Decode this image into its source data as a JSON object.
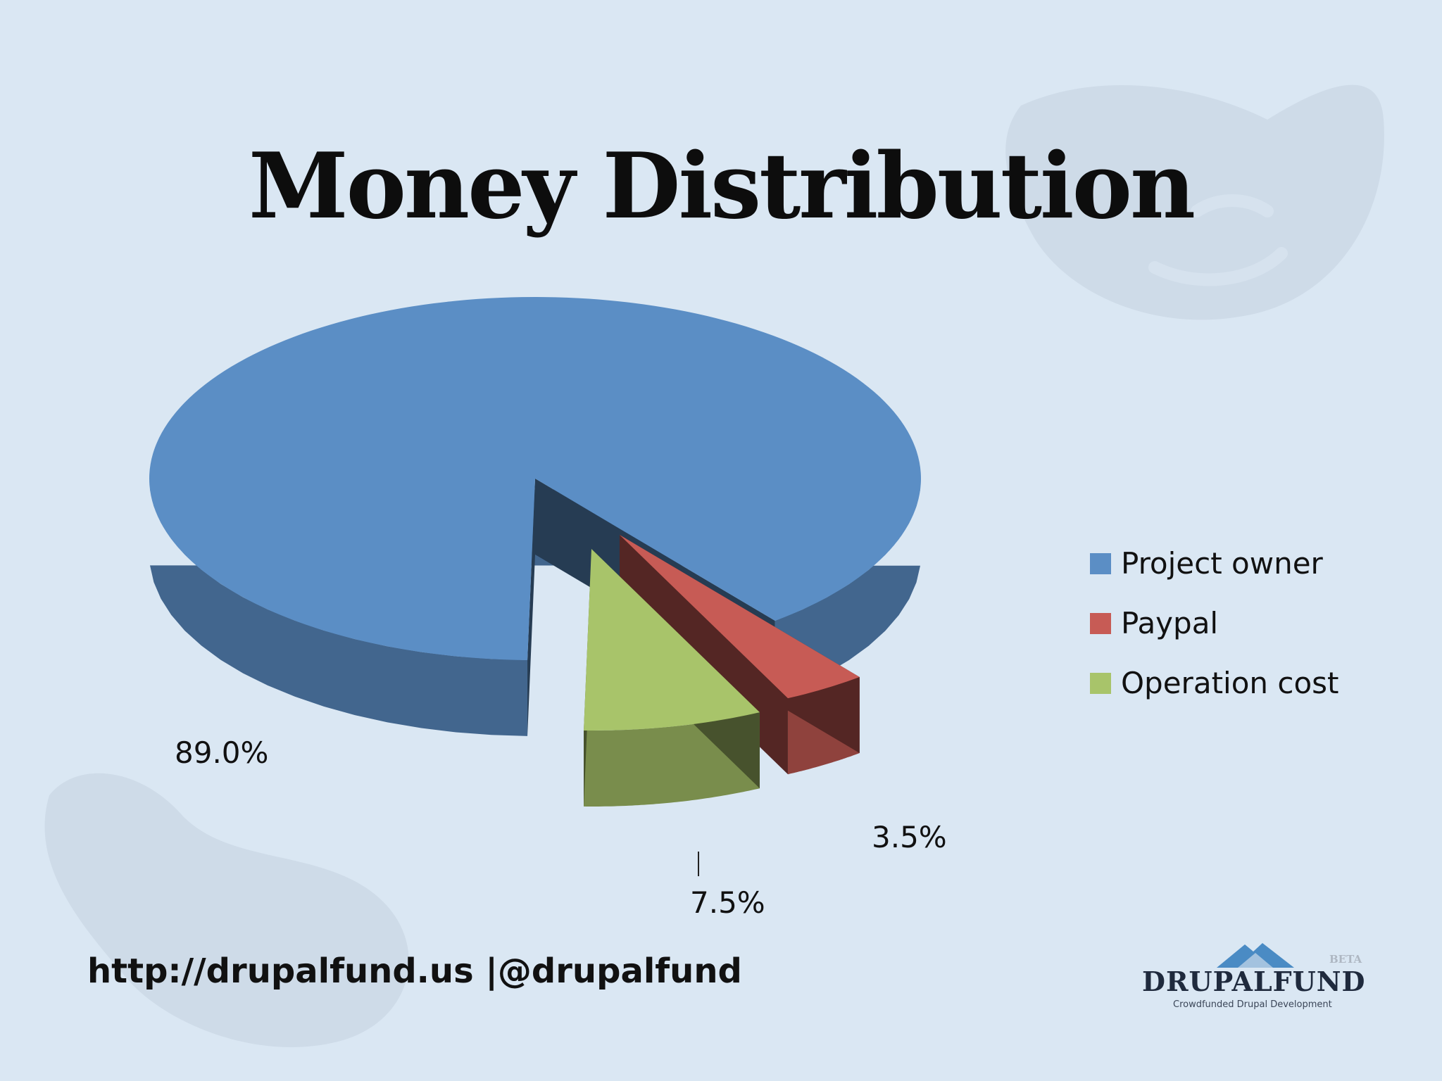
{
  "chart_data": {
    "type": "pie",
    "title": "Money Distribution",
    "categories": [
      "Project owner",
      "Paypal",
      "Operation cost"
    ],
    "values": [
      89.0,
      3.5,
      7.5
    ],
    "data_labels": [
      "89.0%",
      "3.5%",
      "7.5%"
    ],
    "legend_position": "right",
    "colors": [
      "#5b8ec5",
      "#c75b55",
      "#a8c46a"
    ]
  },
  "footer": {
    "link_text": "http://drupalfund.us |@drupalfund"
  },
  "logo": {
    "name": "DRUPALFUND",
    "badge": "BETA",
    "tagline": "Crowdfunded Drupal Development"
  }
}
